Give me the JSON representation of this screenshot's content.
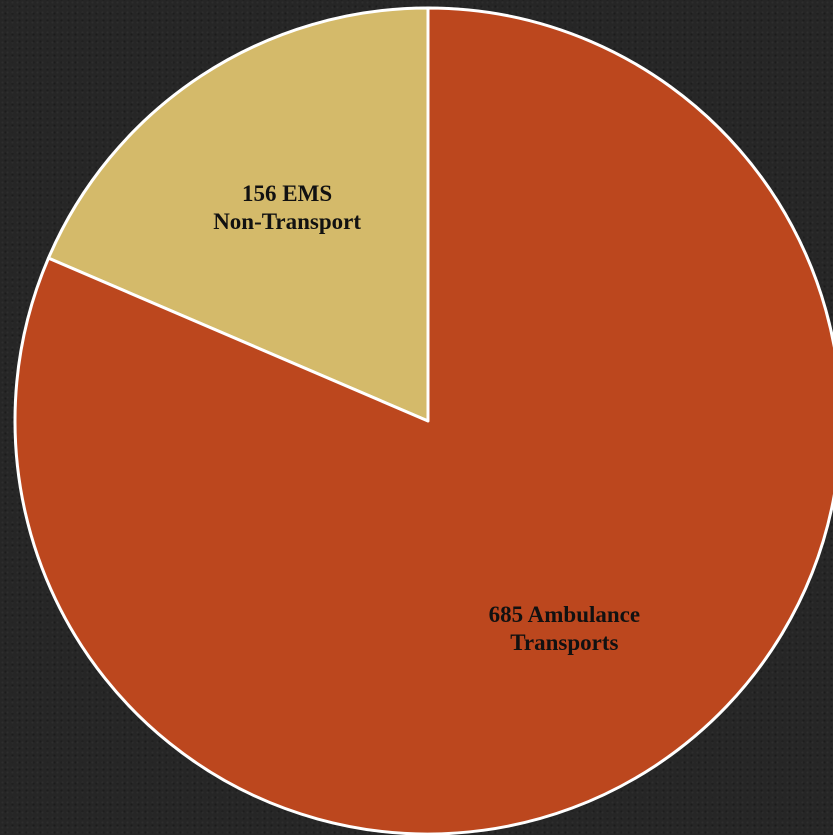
{
  "chart_data": {
    "type": "pie",
    "categories": [
      "EMS Non-Transport",
      "Ambulance Transports"
    ],
    "values": [
      156,
      685
    ],
    "colors": [
      "#D4BA6A",
      "#BC471E"
    ],
    "labels": [
      [
        "156 EMS",
        "Non-Transport"
      ],
      [
        "685 Ambulance",
        "Transports"
      ]
    ],
    "start": "12 o'clock",
    "direction": "counterclockwise",
    "legend": "none"
  },
  "theme": {
    "background": "#262626",
    "slice_border": "#FFFFFF",
    "label_color": "#111111"
  }
}
